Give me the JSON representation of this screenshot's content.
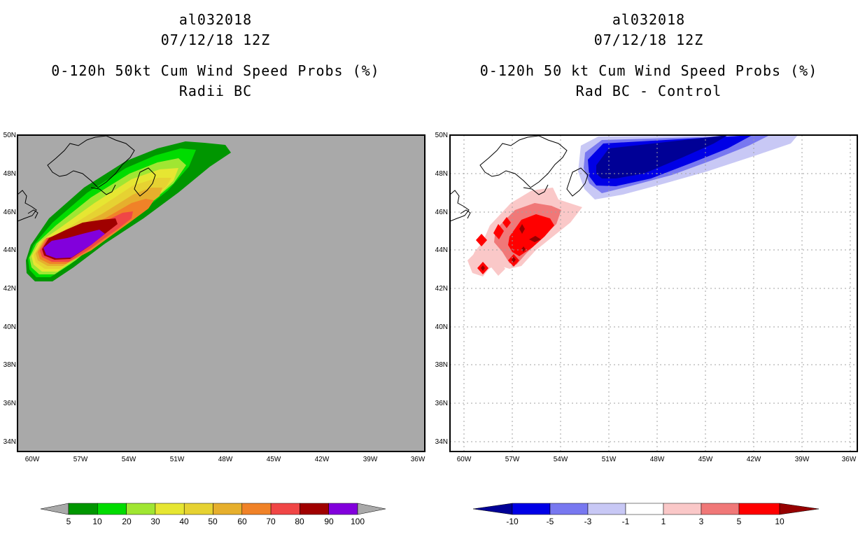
{
  "left_panel": {
    "storm_id": "al032018",
    "date": "07/12/18 12Z",
    "title": "0-120h 50kt Cum Wind Speed Probs (%)",
    "subtitle": "Radii BC",
    "lat_labels": [
      "50N",
      "48N",
      "46N",
      "44N",
      "42N",
      "40N",
      "38N",
      "36N",
      "34N"
    ],
    "lon_labels": [
      "60W",
      "57W",
      "54W",
      "51W",
      "48W",
      "45W",
      "42W",
      "39W",
      "36W"
    ],
    "background_color": "#a9a9a9"
  },
  "right_panel": {
    "storm_id": "al032018",
    "date": "07/12/18 12Z",
    "title": "0-120h 50 kt Cum Wind Speed Probs (%)",
    "subtitle": "Rad BC - Control",
    "lat_labels": [
      "50N",
      "48N",
      "46N",
      "44N",
      "42N",
      "40N",
      "38N",
      "36N",
      "34N"
    ],
    "lon_labels": [
      "60W",
      "57W",
      "54W",
      "51W",
      "48W",
      "45W",
      "42W",
      "39W",
      "36W"
    ]
  },
  "left_colorbar": {
    "labels": [
      "5",
      "10",
      "20",
      "30",
      "40",
      "50",
      "60",
      "70",
      "80",
      "90",
      "100"
    ],
    "colors": [
      "#009600",
      "#00dc00",
      "#a0e632",
      "#e6e632",
      "#e6d232",
      "#e6af2d",
      "#f08228",
      "#f04646",
      "#a00000",
      "#8200dc"
    ],
    "arrow_color": "#a9a9a9"
  },
  "right_colorbar": {
    "labels": [
      "-10",
      "-5",
      "-3",
      "-1",
      "1",
      "3",
      "5",
      "10"
    ],
    "colors": [
      "#0000e6",
      "#7878f0",
      "#c8c8f5",
      "#ffffff",
      "#fac8c8",
      "#f07878",
      "#ff0000"
    ],
    "low_arrow_color": "#000096",
    "high_arrow_color": "#960000"
  },
  "left_shading": [
    {
      "level": "5",
      "color": "#009600"
    },
    {
      "level": "10",
      "color": "#00dc00"
    },
    {
      "level": "20",
      "color": "#a0e632"
    },
    {
      "level": "30",
      "color": "#e6e632"
    },
    {
      "level": "40",
      "color": "#e6d232"
    },
    {
      "level": "50",
      "color": "#e6af2d"
    },
    {
      "level": "60",
      "color": "#f08228"
    },
    {
      "level": "70",
      "color": "#f04646"
    },
    {
      "level": "80",
      "color": "#a00000"
    },
    {
      "level": "90",
      "color": "#8200dc"
    }
  ]
}
